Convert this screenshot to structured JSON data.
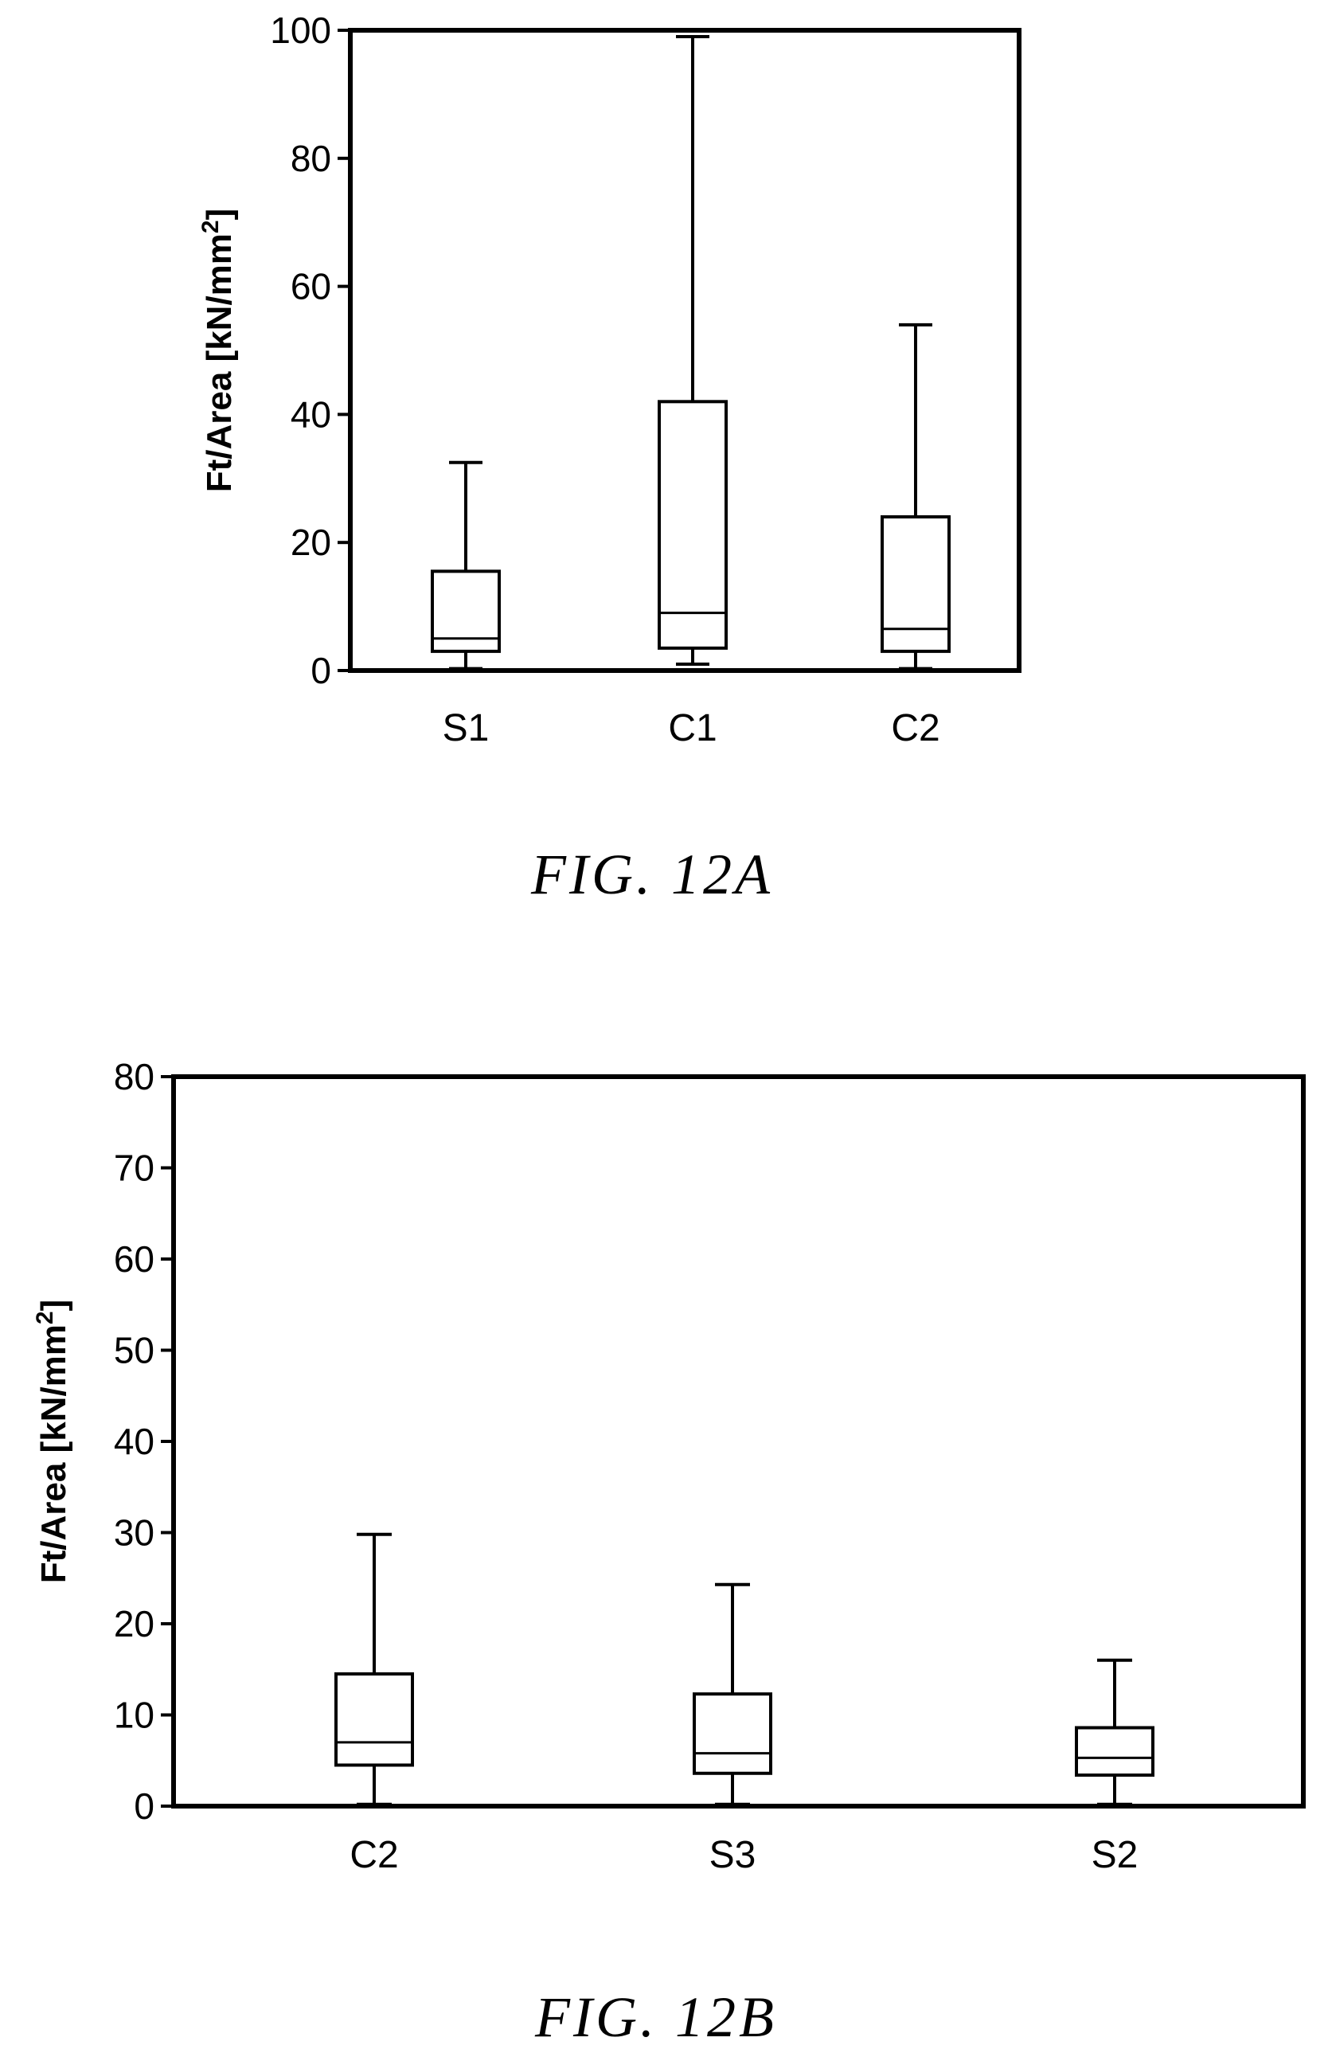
{
  "charts": [
    {
      "caption": "FIG.  12A",
      "chart_data": {
        "type": "box",
        "ylabel": "Ft/Area [kN/mm",
        "ylabel_sup": "2",
        "ylabel_end": "]",
        "ylim": [
          0,
          100
        ],
        "yticks": [
          0,
          20,
          40,
          60,
          80,
          100
        ],
        "categories": [
          "S1",
          "C1",
          "C2"
        ],
        "boxes": [
          {
            "category": "S1",
            "min": 0.3,
            "q1": 3,
            "median": 5,
            "q3": 15.5,
            "max": 32.5
          },
          {
            "category": "C1",
            "min": 1,
            "q1": 3.5,
            "median": 9,
            "q3": 42,
            "max": 99
          },
          {
            "category": "C2",
            "min": 0.3,
            "q1": 3,
            "median": 6.5,
            "q3": 24,
            "max": 54
          }
        ]
      }
    },
    {
      "caption": "FIG.  12B",
      "chart_data": {
        "type": "box",
        "ylabel": "Ft/Area [kN/mm",
        "ylabel_sup": "2",
        "ylabel_end": "]",
        "ylim": [
          0,
          80
        ],
        "yticks": [
          0,
          10,
          20,
          30,
          40,
          50,
          60,
          70,
          80
        ],
        "categories": [
          "C2",
          "S3",
          "S2"
        ],
        "boxes": [
          {
            "category": "C2",
            "min": 0.2,
            "q1": 4.5,
            "median": 7,
            "q3": 14.5,
            "max": 29.8
          },
          {
            "category": "S3",
            "min": 0.2,
            "q1": 3.6,
            "median": 5.8,
            "q3": 12.3,
            "max": 24.3
          },
          {
            "category": "S2",
            "min": 0.2,
            "q1": 3.4,
            "median": 5.3,
            "q3": 8.6,
            "max": 16
          }
        ]
      }
    }
  ]
}
